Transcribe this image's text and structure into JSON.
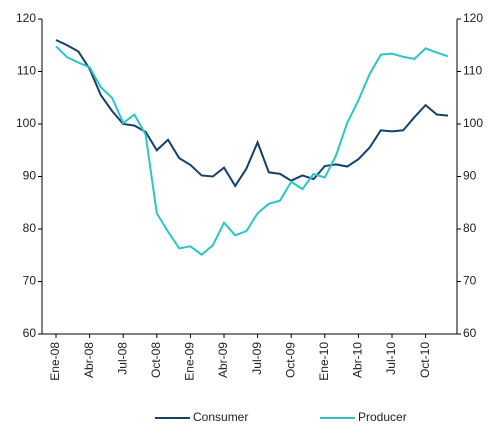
{
  "chart_data": {
    "type": "line",
    "categories": [
      "Ene-08",
      null,
      null,
      "Abr-08",
      null,
      null,
      "Jul-08",
      null,
      null,
      "Oct-08",
      null,
      null,
      "Ene-09",
      null,
      null,
      "Abr-09",
      null,
      null,
      "Jul-09",
      null,
      null,
      "Oct-09",
      null,
      null,
      "Ene-10",
      null,
      null,
      "Abr-10",
      null,
      null,
      "Jul-10",
      null,
      null,
      "Oct-10",
      null,
      null
    ],
    "series": [
      {
        "name": "Consumer",
        "color": "#17406b",
        "values": [
          116,
          115,
          113.8,
          110.5,
          105.5,
          102.5,
          100,
          99.7,
          98.5,
          95,
          97,
          93.5,
          92.2,
          90.2,
          90,
          91.7,
          88.2,
          91.5,
          96.5,
          90.8,
          90.5,
          89.2,
          90.2,
          89.5,
          92,
          92.3,
          91.9,
          93.3,
          95.5,
          98.8,
          98.6,
          98.8,
          101.3,
          103.6,
          101.8,
          101.6
        ]
      },
      {
        "name": "Producer",
        "color": "#2ec4c6",
        "values": [
          114.8,
          112.7,
          111.7,
          110.8,
          107,
          105,
          100.2,
          101.8,
          98,
          83,
          79.5,
          76.3,
          76.7,
          75.1,
          76.9,
          81.2,
          78.8,
          79.6,
          83,
          84.8,
          85.4,
          89,
          87.6,
          90.5,
          89.8,
          94,
          100.2,
          104.5,
          109.5,
          113.2,
          113.4,
          112.8,
          112.4,
          114.4,
          113.6,
          112.9
        ]
      }
    ],
    "ylim": [
      60,
      120
    ],
    "yticks": [
      60,
      70,
      80,
      90,
      100,
      110,
      120
    ],
    "y2lim": [
      60,
      120
    ],
    "y2ticks": [
      60,
      70,
      80,
      90,
      100,
      110,
      120
    ],
    "legend": "bottom"
  }
}
